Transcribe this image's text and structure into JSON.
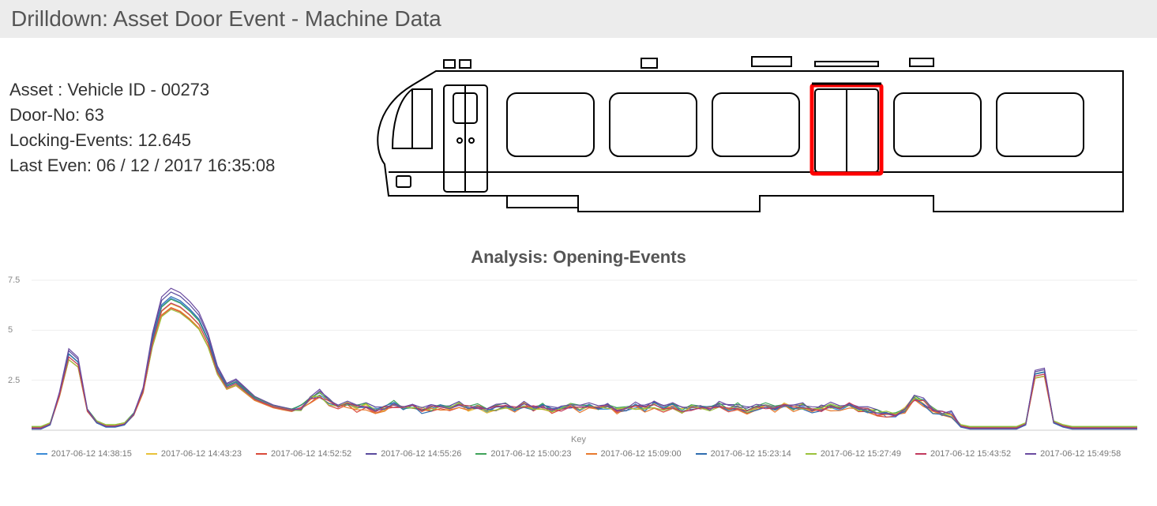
{
  "title": "Drilldown: Asset Door Event - Machine Data",
  "info": {
    "asset_label": "Asset :",
    "asset_value": "Vehicle ID - 00273",
    "door_label": "Door-No:",
    "door_value": "63",
    "lock_label": "Locking-Events:",
    "lock_value": "12.645",
    "last_label": "Last Even:",
    "last_value": "06 / 12 / 2017 16:35:08"
  },
  "diagram": {
    "highlight_color": "#ff0000",
    "stroke": "#000000"
  },
  "analysis_title": "Analysis: Opening-Events",
  "chart": {
    "type": "line",
    "background": "#ffffff",
    "ylim": [
      0,
      7.5
    ],
    "yticks": [
      2.5,
      5,
      7.5
    ],
    "grid_color": "#eeeeee",
    "axis_color": "#cccccc",
    "x_axis_label": "Key",
    "line_width": 1.2,
    "n_points": 120,
    "series": [
      {
        "label": "2017-06-12 14:38:15",
        "color": "#3b8bd6",
        "scale": 1.0,
        "offset": 0.0
      },
      {
        "label": "2017-06-12 14:43:23",
        "color": "#e8c23a",
        "scale": 0.95,
        "offset": 0.05
      },
      {
        "label": "2017-06-12 14:52:52",
        "color": "#d94a3a",
        "scale": 0.92,
        "offset": 0.03
      },
      {
        "label": "2017-06-12 14:55:26",
        "color": "#5a4b9e",
        "scale": 1.05,
        "offset": -0.02
      },
      {
        "label": "2017-06-12 15:00:23",
        "color": "#3fa35a",
        "scale": 0.98,
        "offset": 0.08
      },
      {
        "label": "2017-06-12 15:09:00",
        "color": "#e87a2e",
        "scale": 0.93,
        "offset": 0.0
      },
      {
        "label": "2017-06-12 15:23:14",
        "color": "#2f6db0",
        "scale": 1.02,
        "offset": -0.05
      },
      {
        "label": "2017-06-12 15:27:49",
        "color": "#9bc23c",
        "scale": 0.9,
        "offset": 0.1
      },
      {
        "label": "2017-06-12 15:43:52",
        "color": "#c23a5e",
        "scale": 0.96,
        "offset": 0.02
      },
      {
        "label": "2017-06-12 15:49:58",
        "color": "#6a4ba0",
        "scale": 1.08,
        "offset": -0.03
      }
    ],
    "base_shape": [
      0.1,
      0.1,
      0.3,
      1.8,
      3.8,
      3.4,
      1.0,
      0.4,
      0.2,
      0.2,
      0.3,
      0.8,
      2.0,
      4.5,
      6.2,
      6.6,
      6.4,
      6.0,
      5.5,
      4.5,
      3.0,
      2.2,
      2.4,
      2.0,
      1.6,
      1.4,
      1.2,
      1.1,
      1.0,
      1.1,
      1.6,
      1.8,
      1.4,
      1.2,
      1.3,
      1.1,
      1.2,
      1.0,
      1.1,
      1.3,
      1.1,
      1.2,
      1.0,
      1.1,
      1.2,
      1.1,
      1.3,
      1.1,
      1.2,
      1.0,
      1.1,
      1.2,
      1.1,
      1.3,
      1.1,
      1.2,
      1.0,
      1.1,
      1.2,
      1.1,
      1.3,
      1.1,
      1.2,
      1.0,
      1.1,
      1.2,
      1.1,
      1.3,
      1.1,
      1.2,
      1.0,
      1.1,
      1.2,
      1.1,
      1.3,
      1.1,
      1.2,
      1.0,
      1.1,
      1.2,
      1.1,
      1.3,
      1.1,
      1.2,
      1.0,
      1.1,
      1.2,
      1.1,
      1.3,
      1.1,
      1.0,
      0.9,
      0.8,
      0.8,
      1.0,
      1.6,
      1.4,
      1.0,
      0.8,
      0.8,
      0.2,
      0.1,
      0.1,
      0.1,
      0.1,
      0.1,
      0.1,
      0.3,
      2.8,
      2.9,
      0.4,
      0.2,
      0.1,
      0.1,
      0.1,
      0.1,
      0.1,
      0.1,
      0.1,
      0.1
    ]
  }
}
